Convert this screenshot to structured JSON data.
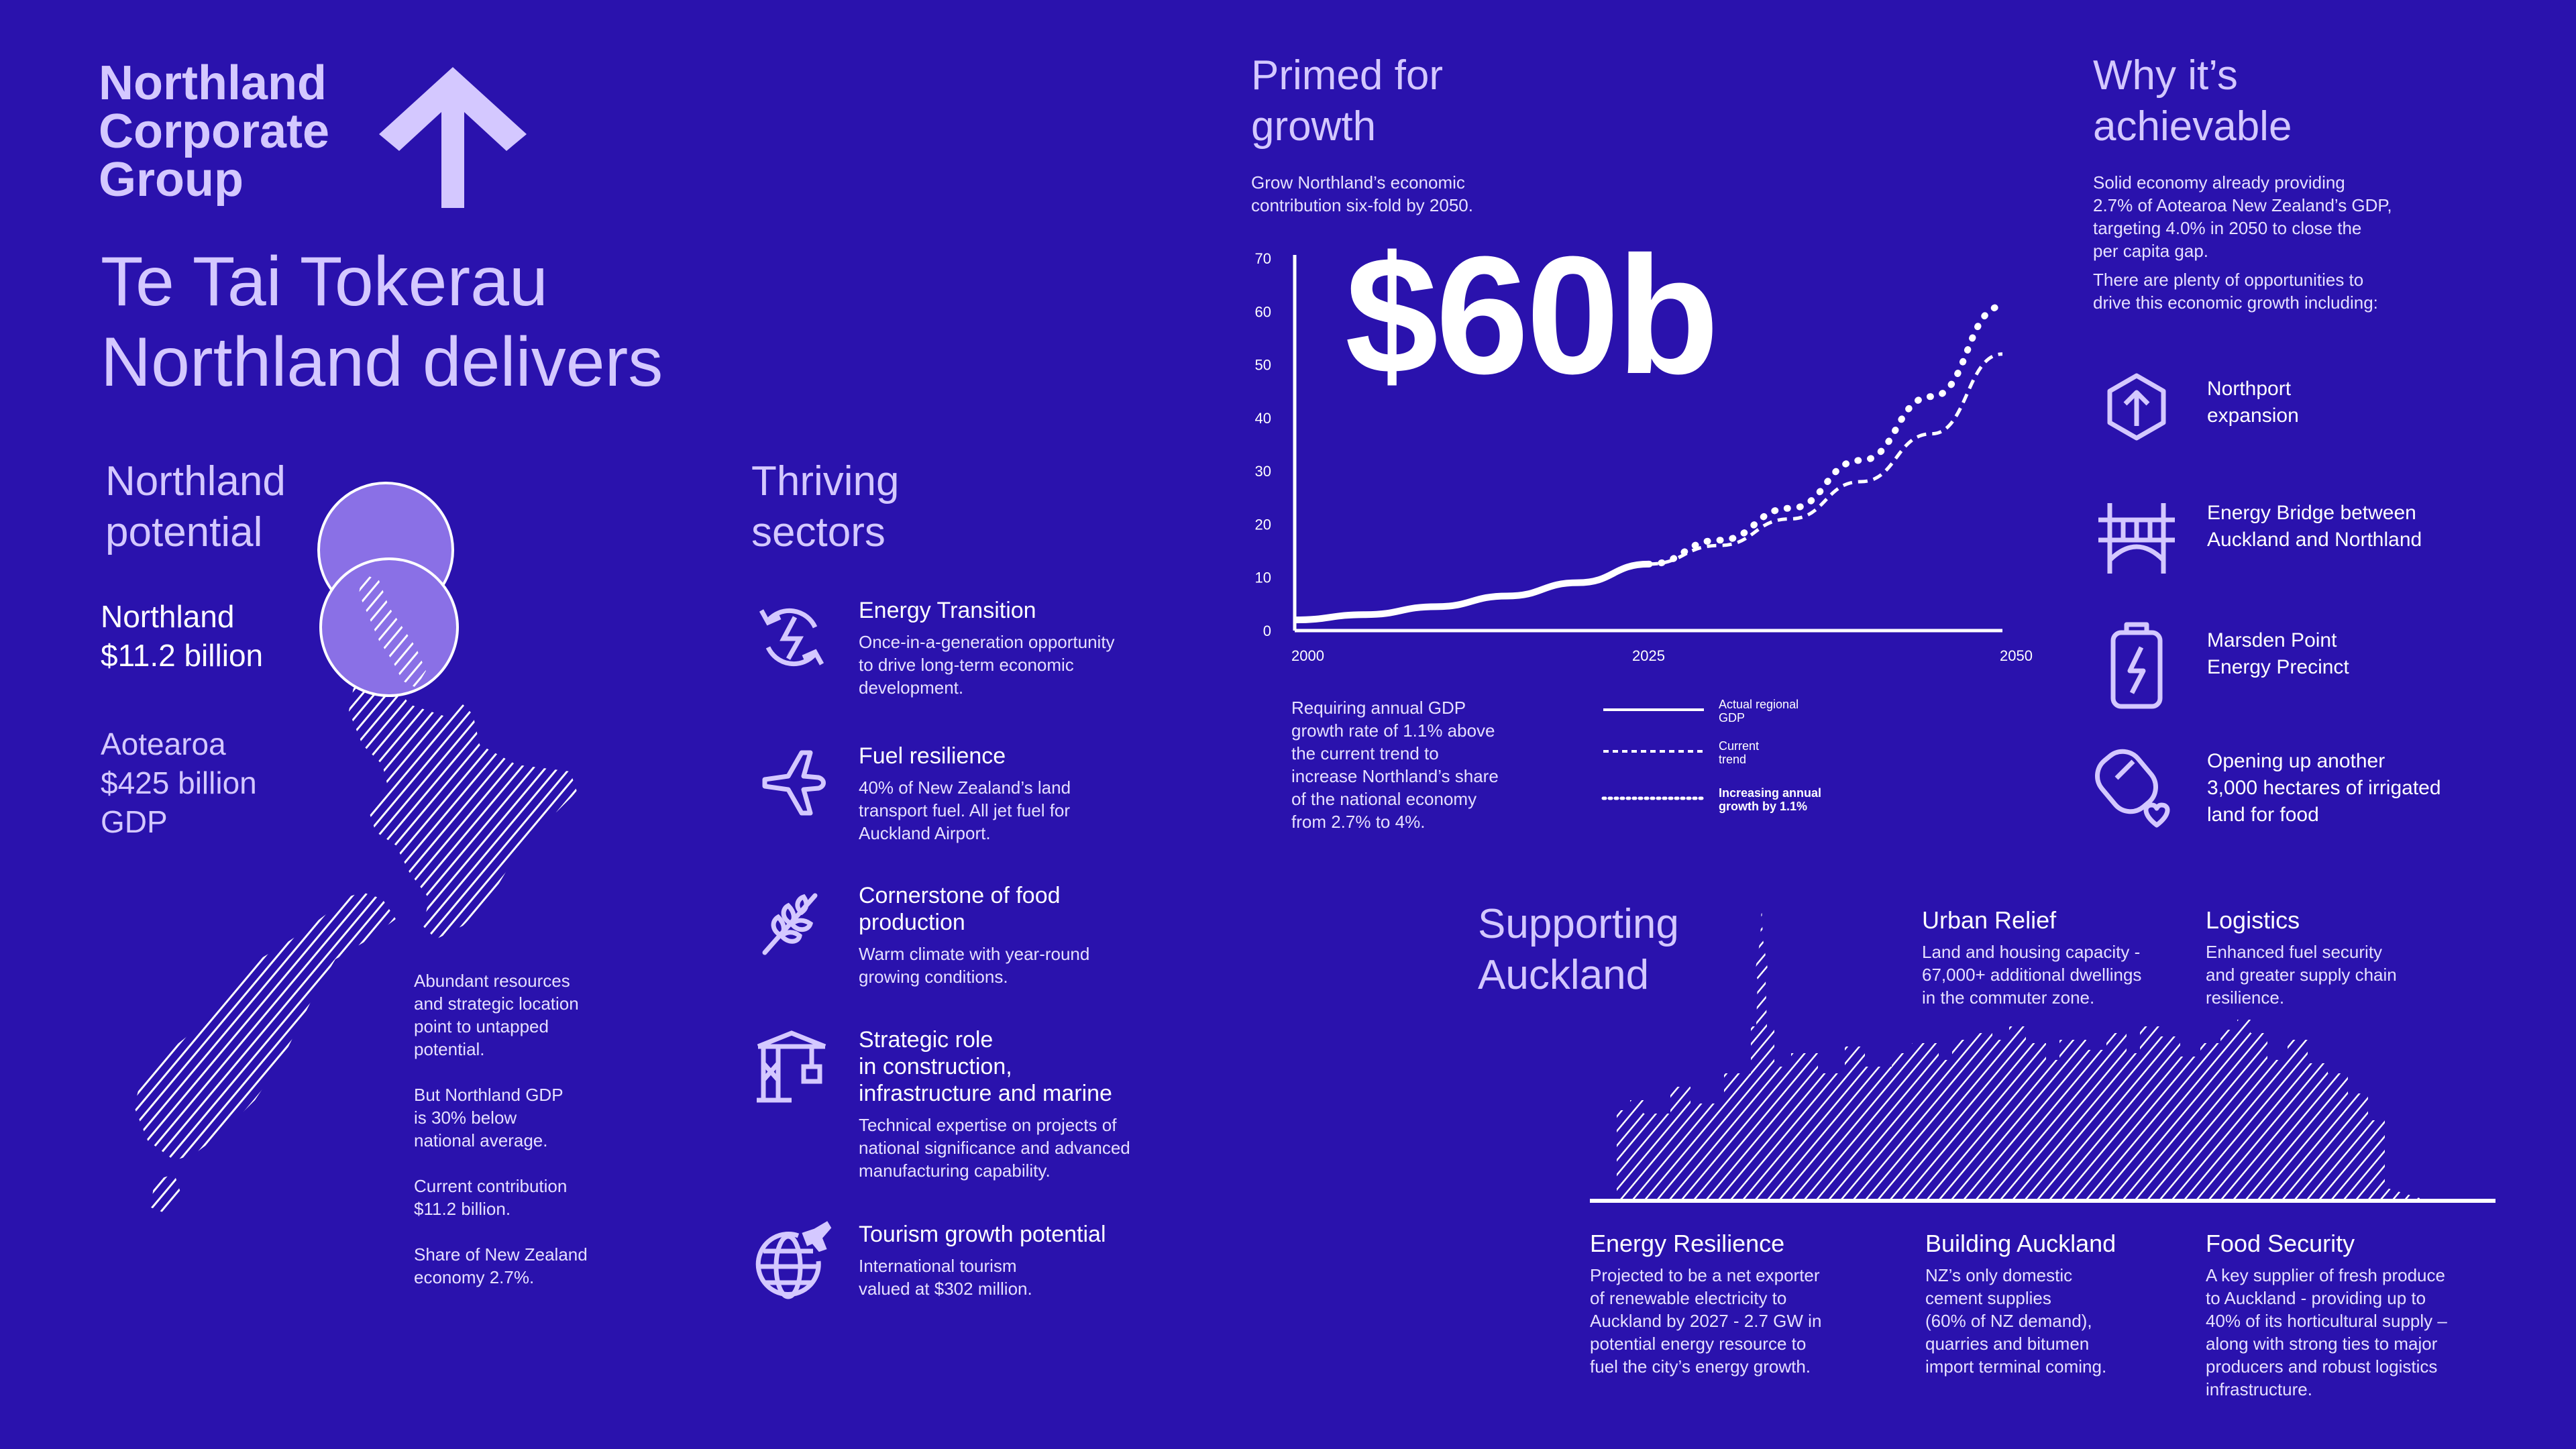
{
  "brand": {
    "name": "Northland\nCorporate\nGroup"
  },
  "headline": "Te Tai Tokerau\nNorthland delivers",
  "potential": {
    "title": "Northland\npotential",
    "northland_stat": "Northland\n$11.2 billion",
    "aotearoa_stat": "Aotearoa\n$425 billion\nGDP",
    "notes": [
      "Abundant resources\nand strategic location\npoint to untapped\npotential.",
      "But Northland GDP\nis 30% below\nnational average.",
      "Current contribution\n$11.2 billion.",
      "Share of New Zealand\neconomy 2.7%."
    ]
  },
  "sectors": {
    "title": "Thriving\nsectors",
    "items": [
      {
        "icon": "energy-transition-icon",
        "title": "Energy Transition",
        "desc": "Once-in-a-generation opportunity\nto drive long-term economic\ndevelopment."
      },
      {
        "icon": "airplane-icon",
        "title": "Fuel resilience",
        "desc": "40% of New Zealand’s land\ntransport fuel. All jet fuel for\nAuckland Airport."
      },
      {
        "icon": "wheat-icon",
        "title": "Cornerstone of food\nproduction",
        "desc": "Warm climate with year-round\ngrowing conditions."
      },
      {
        "icon": "crane-icon",
        "title": "Strategic role\nin construction,\ninfrastructure and marine",
        "desc": "Technical expertise on projects of\nnational significance and advanced\nmanufacturing capability."
      },
      {
        "icon": "globe-plane-icon",
        "title": "Tourism growth potential",
        "desc": "International tourism\nvalued at $302 million."
      }
    ]
  },
  "growth": {
    "title": "Primed for\ngrowth",
    "subtitle": "Grow Northland’s economic\ncontribution six-fold by 2050.",
    "big_value": "$60b",
    "note": "Requiring annual GDP\ngrowth rate of 1.1% above\nthe current trend to\nincrease Northland’s share\nof the national economy\nfrom 2.7% to 4%.",
    "legend": [
      "Actual regional\nGDP",
      "Current\ntrend",
      "Increasing annual\ngrowth by 1.1%"
    ]
  },
  "chart_data": {
    "type": "line",
    "y_ticks": [
      "0",
      "10",
      "20",
      "30",
      "40",
      "50",
      "60",
      "70"
    ],
    "x_ticks": [
      "2000",
      "2025",
      "2050"
    ],
    "xlim": [
      2000,
      2050
    ],
    "ylim": [
      0,
      70
    ],
    "series": [
      {
        "name": "Actual regional GDP",
        "style": "solid",
        "x": [
          2000,
          2005,
          2010,
          2015,
          2020,
          2025
        ],
        "y": [
          2,
          3,
          4.5,
          6.5,
          9,
          12.5
        ]
      },
      {
        "name": "Current trend",
        "style": "dashed",
        "x": [
          2025,
          2030,
          2035,
          2040,
          2045,
          2050
        ],
        "y": [
          12.5,
          16,
          21,
          28,
          37,
          52
        ]
      },
      {
        "name": "Increasing annual growth by 1.1%",
        "style": "dotted",
        "x": [
          2025,
          2030,
          2035,
          2040,
          2045,
          2050
        ],
        "y": [
          12.5,
          17,
          23,
          32,
          44,
          61
        ]
      }
    ]
  },
  "why": {
    "title": "Why it’s\nachievable",
    "intro1": "Solid economy already providing\n2.7% of Aotearoa New Zealand’s GDP,\ntargeting 4.0% in 2050 to close the\nper capita gap.",
    "intro2": "There are plenty of opportunities to\ndrive this economic growth including:",
    "items": [
      {
        "icon": "port-expansion-icon",
        "label": "Northport\nexpansion"
      },
      {
        "icon": "bridge-icon",
        "label": "Energy Bridge between\nAuckland and Northland"
      },
      {
        "icon": "energy-battery-icon",
        "label": "Marsden Point\nEnergy Precinct"
      },
      {
        "icon": "water-heart-icon",
        "label": "Opening up another\n3,000 hectares of irrigated\nland for food"
      }
    ]
  },
  "auckland": {
    "title": "Supporting\nAuckland",
    "urban": {
      "title": "Urban Relief",
      "desc": "Land and housing capacity -\n67,000+ additional dwellings\nin the commuter zone."
    },
    "logistics": {
      "title": "Logistics",
      "desc": "Enhanced fuel security\nand greater supply chain\nresilience."
    },
    "energy": {
      "title": "Energy Resilience",
      "desc": "Projected to be a net exporter\nof renewable electricity to\nAuckland by 2027 - 2.7 GW in\npotential energy resource to\nfuel the city’s energy growth."
    },
    "building": {
      "title": "Building Auckland",
      "desc": "NZ’s only domestic\ncement supplies\n(60% of NZ demand),\nquarries and bitumen\nimport terminal coming."
    },
    "food": {
      "title": "Food Security",
      "desc": "A key supplier of fresh produce\nto Auckland - providing up to\n40% of its horticultural supply –\nalong with strong ties to major\nproducers and robust logistics\ninfrastructure."
    }
  },
  "colors": {
    "background": "#2a12ad",
    "lavender": "#d4c8ff",
    "accent_circle": "#8a70e6"
  }
}
